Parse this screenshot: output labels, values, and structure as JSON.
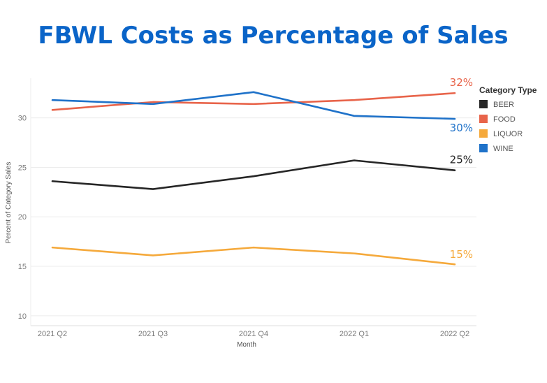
{
  "chart_data": {
    "type": "line",
    "title": "FBWL Costs as Percentage of Sales",
    "xlabel": "Month",
    "ylabel": "Percent of Category Sales",
    "categories": [
      "2021 Q2",
      "2021 Q3",
      "2021 Q4",
      "2022 Q1",
      "2022 Q2"
    ],
    "ylim": [
      9,
      34
    ],
    "yticks": [
      10,
      15,
      20,
      25,
      30
    ],
    "grid": true,
    "legend_title": "Category Type",
    "legend_position": "right",
    "series": [
      {
        "name": "BEER",
        "color": "#262626",
        "values": [
          23.6,
          22.8,
          24.1,
          25.7,
          24.7
        ],
        "end_label": "25%"
      },
      {
        "name": "FOOD",
        "color": "#e8644a",
        "values": [
          30.8,
          31.6,
          31.4,
          31.8,
          32.5
        ],
        "end_label": "32%"
      },
      {
        "name": "LIQUOR",
        "color": "#f5a93b",
        "values": [
          16.9,
          16.1,
          16.9,
          16.3,
          15.2
        ],
        "end_label": "15%"
      },
      {
        "name": "WINE",
        "color": "#1f72c9",
        "values": [
          31.8,
          31.4,
          32.6,
          30.2,
          29.9
        ],
        "end_label": "30%"
      }
    ],
    "title_color": "#0a64c8"
  }
}
